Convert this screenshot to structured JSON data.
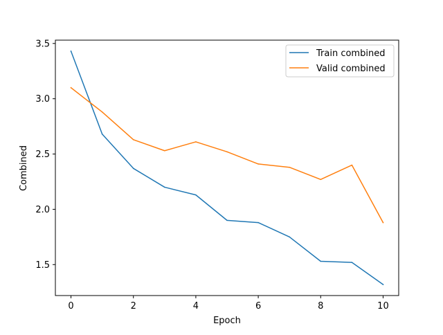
{
  "chart_data": {
    "type": "line",
    "xlabel": "Epoch",
    "ylabel": "Combined",
    "xlim": [
      -0.5,
      10.5
    ],
    "ylim": [
      1.22,
      3.53
    ],
    "xticks": [
      0,
      2,
      4,
      6,
      8,
      10
    ],
    "xtick_labels": [
      "0",
      "2",
      "4",
      "6",
      "8",
      "10"
    ],
    "yticks": [
      1.5,
      2.0,
      2.5,
      3.0,
      3.5
    ],
    "ytick_labels": [
      "1.5",
      "2.0",
      "2.5",
      "3.0",
      "3.5"
    ],
    "grid": false,
    "legend_position": "top-right",
    "x": [
      0,
      1,
      2,
      3,
      4,
      5,
      6,
      7,
      8,
      9,
      10
    ],
    "series": [
      {
        "name": "Train combined",
        "color": "#1f77b4",
        "values": [
          3.43,
          2.68,
          2.37,
          2.2,
          2.13,
          1.9,
          1.88,
          1.75,
          1.53,
          1.52,
          1.32
        ]
      },
      {
        "name": "Valid combined",
        "color": "#ff7f0e",
        "values": [
          3.1,
          2.88,
          2.63,
          2.53,
          2.61,
          2.52,
          2.41,
          2.38,
          2.27,
          2.4,
          1.88
        ]
      }
    ]
  }
}
